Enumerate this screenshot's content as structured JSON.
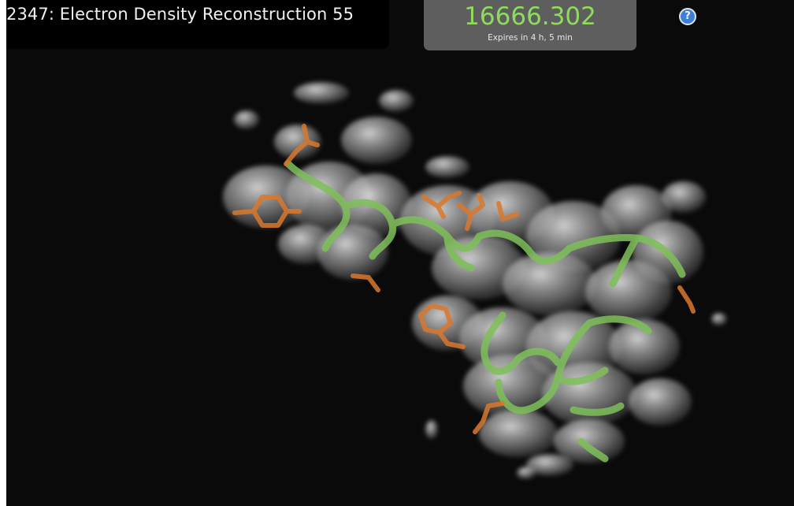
{
  "puzzle": {
    "title": "2347: Electron Density Reconstruction 55"
  },
  "score": {
    "value": "16666.302",
    "expiry": "Expires in 4 h, 5 min"
  },
  "help": {
    "icon": "question-mark-icon",
    "glyph": "?"
  },
  "colors": {
    "background": "#0a0a0a",
    "score_text": "#8edc5c",
    "density_cloud": "#d9d9d9",
    "backbone": "#7fbf5a",
    "sidechain": "#d9782d",
    "help_button": "#3d7fd6"
  }
}
